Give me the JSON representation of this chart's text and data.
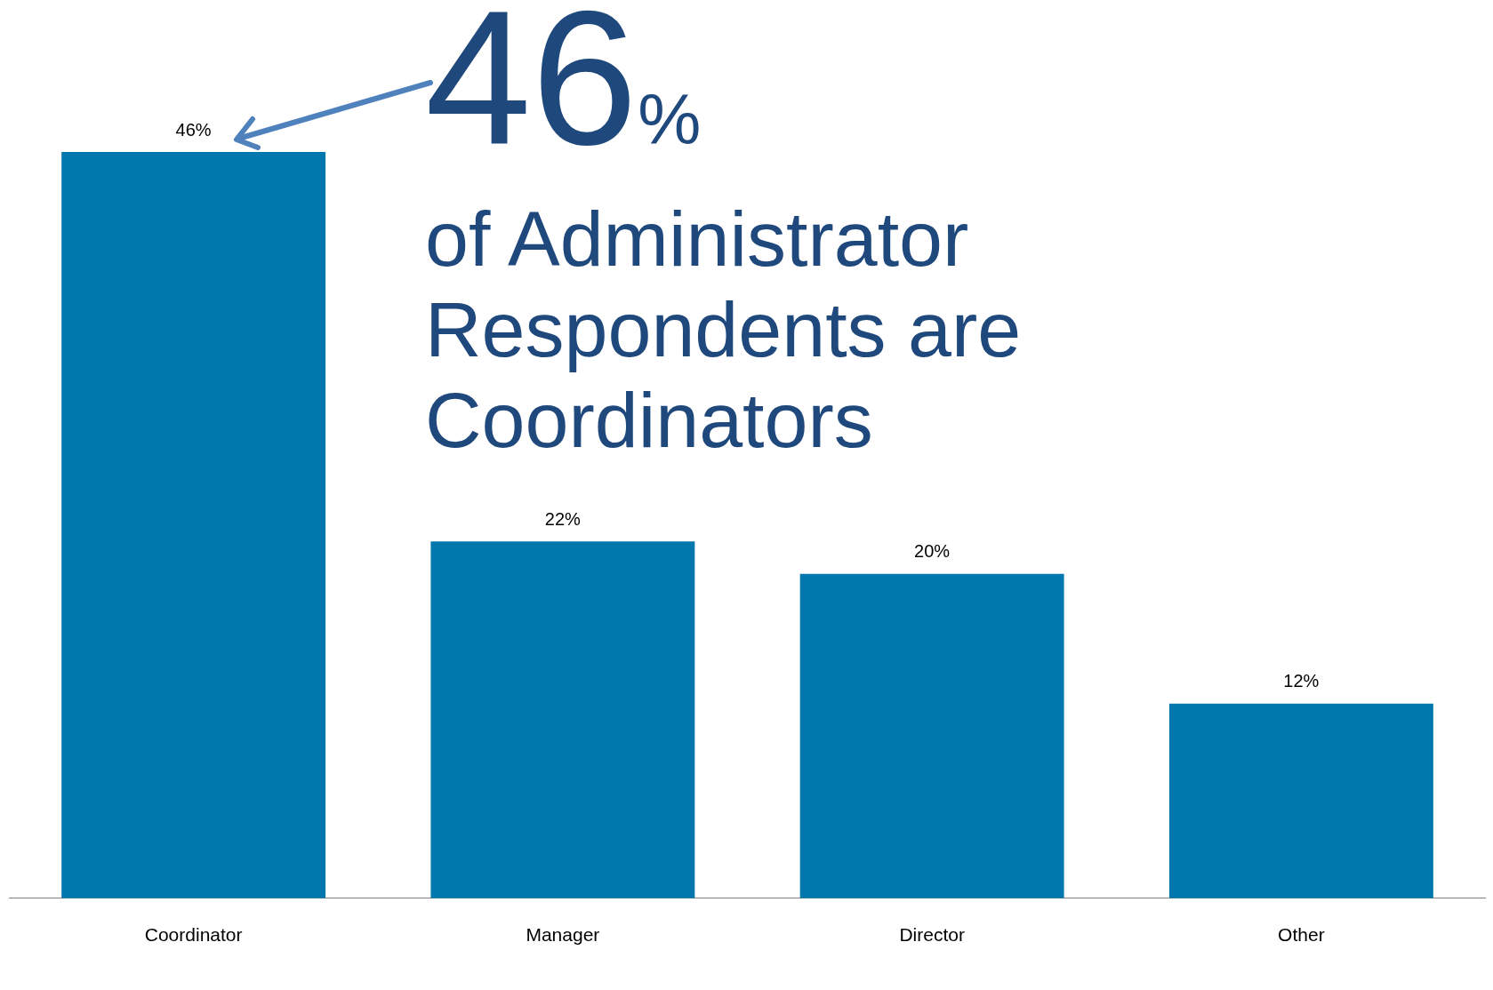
{
  "chart_data": {
    "type": "bar",
    "categories": [
      "Coordinator",
      "Manager",
      "Director",
      "Other"
    ],
    "values": [
      46,
      22,
      20,
      12
    ],
    "color": "#0077ad",
    "data_labels": true,
    "value_labels": [
      "46%",
      "22%",
      "20%",
      "12%"
    ],
    "grid": false,
    "legend": false,
    "tick_labels": "x",
    "annotations": [
      "46%",
      "of Administrator Respondents are Coordinators"
    ]
  }
}
